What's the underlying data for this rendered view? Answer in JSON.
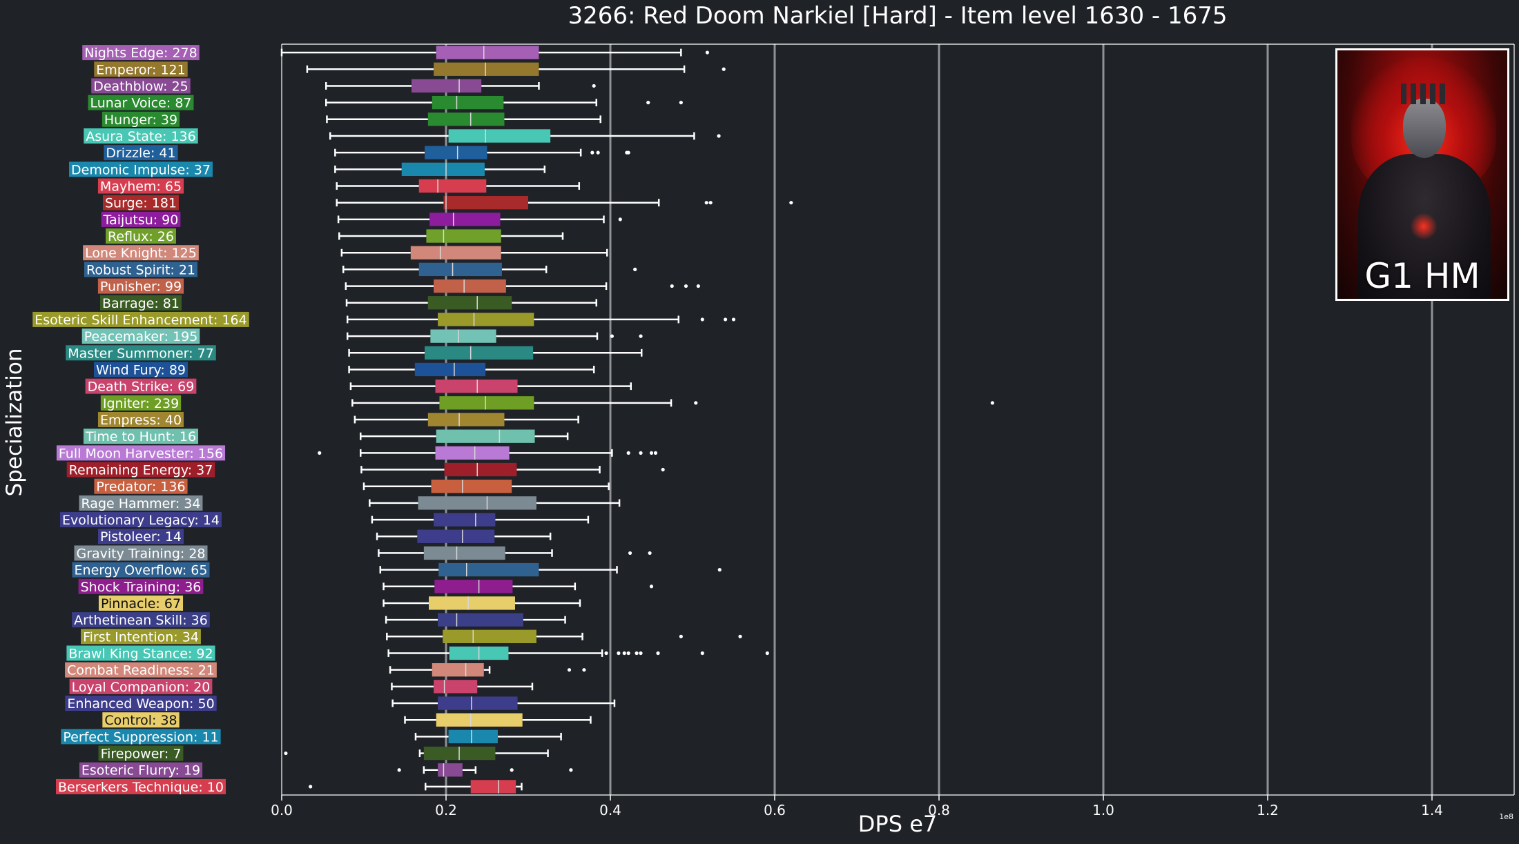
{
  "chart_data": {
    "type": "box",
    "title": "3266: Red Doom Narkiel [Hard] - Item level 1630 - 1675",
    "xlabel": "DPS e7",
    "ylabel": "Specialization",
    "x_offset_label": "1e8",
    "xlim": [
      0.0,
      1.5
    ],
    "x_ticks": [
      "0.0",
      "0.2",
      "0.4",
      "0.6",
      "0.8",
      "1.0",
      "1.2",
      "1.4"
    ],
    "grid": "vertical",
    "series": [
      {
        "label": "Nights Edge: 278",
        "color": "#a55fb5",
        "wmin": 0.0,
        "q1": 0.188,
        "median": 0.246,
        "q3": 0.313,
        "wmax": 0.486,
        "outliers": [
          0.518
        ]
      },
      {
        "label": "Emperor: 121",
        "color": "#94782e",
        "wmin": 0.031,
        "q1": 0.185,
        "median": 0.248,
        "q3": 0.313,
        "wmax": 0.49,
        "outliers": [
          0.538
        ]
      },
      {
        "label": "Deathblow: 25",
        "color": "#874a93",
        "wmin": 0.054,
        "q1": 0.158,
        "median": 0.216,
        "q3": 0.243,
        "wmax": 0.313,
        "outliers": [
          0.38
        ]
      },
      {
        "label": "Lunar Voice: 87",
        "color": "#2a8a2f",
        "wmin": 0.054,
        "q1": 0.183,
        "median": 0.213,
        "q3": 0.27,
        "wmax": 0.383,
        "outliers": [
          0.446,
          0.486
        ]
      },
      {
        "label": "Hunger: 39",
        "color": "#2a8a2f",
        "wmin": 0.055,
        "q1": 0.178,
        "median": 0.23,
        "q3": 0.271,
        "wmax": 0.388,
        "outliers": []
      },
      {
        "label": "Asura State: 136",
        "color": "#48c7b4",
        "wmin": 0.059,
        "q1": 0.203,
        "median": 0.248,
        "q3": 0.327,
        "wmax": 0.502,
        "outliers": [
          0.532
        ]
      },
      {
        "label": "Drizzle: 41",
        "color": "#1e5f9c",
        "wmin": 0.065,
        "q1": 0.174,
        "median": 0.214,
        "q3": 0.25,
        "wmax": 0.364,
        "outliers": [
          0.378,
          0.385,
          0.42,
          0.422
        ]
      },
      {
        "label": "Demonic Impulse: 37",
        "color": "#1a88ad",
        "wmin": 0.065,
        "q1": 0.146,
        "median": 0.2,
        "q3": 0.247,
        "wmax": 0.32,
        "outliers": []
      },
      {
        "label": "Mayhem: 65",
        "color": "#d63d4f",
        "wmin": 0.067,
        "q1": 0.167,
        "median": 0.19,
        "q3": 0.249,
        "wmax": 0.362,
        "outliers": []
      },
      {
        "label": "Surge: 181",
        "color": "#a82a2a",
        "wmin": 0.067,
        "q1": 0.197,
        "median": 0.2,
        "q3": 0.3,
        "wmax": 0.459,
        "outliers": [
          0.517,
          0.522,
          0.62
        ]
      },
      {
        "label": "Taijutsu: 90",
        "color": "#8e1d9e",
        "wmin": 0.069,
        "q1": 0.18,
        "median": 0.209,
        "q3": 0.266,
        "wmax": 0.392,
        "outliers": [
          0.412
        ]
      },
      {
        "label": "Reflux: 26",
        "color": "#70a02a",
        "wmin": 0.07,
        "q1": 0.176,
        "median": 0.197,
        "q3": 0.267,
        "wmax": 0.342,
        "outliers": []
      },
      {
        "label": "Lone Knight: 125",
        "color": "#d1887a",
        "wmin": 0.073,
        "q1": 0.157,
        "median": 0.193,
        "q3": 0.267,
        "wmax": 0.396,
        "outliers": []
      },
      {
        "label": "Robust Spirit: 21",
        "color": "#2f6290",
        "wmin": 0.075,
        "q1": 0.167,
        "median": 0.208,
        "q3": 0.268,
        "wmax": 0.322,
        "outliers": [
          0.43
        ]
      },
      {
        "label": "Punisher: 99",
        "color": "#c2614a",
        "wmin": 0.078,
        "q1": 0.185,
        "median": 0.222,
        "q3": 0.273,
        "wmax": 0.395,
        "outliers": [
          0.475,
          0.492,
          0.507
        ]
      },
      {
        "label": "Barrage: 81",
        "color": "#3a5c24",
        "wmin": 0.079,
        "q1": 0.178,
        "median": 0.238,
        "q3": 0.28,
        "wmax": 0.383,
        "outliers": []
      },
      {
        "label": "Esoteric Skill Enhancement: 164",
        "color": "#9a9a2a",
        "wmin": 0.08,
        "q1": 0.19,
        "median": 0.234,
        "q3": 0.307,
        "wmax": 0.483,
        "outliers": [
          0.512,
          0.54,
          0.55
        ]
      },
      {
        "label": "Peacemaker: 195",
        "color": "#72c2b6",
        "wmin": 0.08,
        "q1": 0.181,
        "median": 0.215,
        "q3": 0.261,
        "wmax": 0.384,
        "outliers": [
          0.402,
          0.437
        ]
      },
      {
        "label": "Master Summoner: 77",
        "color": "#2a8a83",
        "wmin": 0.082,
        "q1": 0.174,
        "median": 0.23,
        "q3": 0.306,
        "wmax": 0.438,
        "outliers": []
      },
      {
        "label": "Wind Fury: 89",
        "color": "#1e5298",
        "wmin": 0.082,
        "q1": 0.162,
        "median": 0.21,
        "q3": 0.248,
        "wmax": 0.38,
        "outliers": []
      },
      {
        "label": "Death Strike: 69",
        "color": "#c9436d",
        "wmin": 0.084,
        "q1": 0.187,
        "median": 0.238,
        "q3": 0.287,
        "wmax": 0.425,
        "outliers": []
      },
      {
        "label": "Igniter: 239",
        "color": "#6e9e24",
        "wmin": 0.086,
        "q1": 0.192,
        "median": 0.248,
        "q3": 0.307,
        "wmax": 0.474,
        "outliers": [
          0.504,
          0.865
        ]
      },
      {
        "label": "Empress: 40",
        "color": "#a08630",
        "wmin": 0.089,
        "q1": 0.178,
        "median": 0.216,
        "q3": 0.271,
        "wmax": 0.361,
        "outliers": []
      },
      {
        "label": "Time to Hunt: 16",
        "color": "#6fc1ae",
        "wmin": 0.096,
        "q1": 0.188,
        "median": 0.265,
        "q3": 0.308,
        "wmax": 0.348,
        "outliers": []
      },
      {
        "label": "Full Moon Harvester: 156",
        "color": "#b97ad6",
        "wmin": 0.096,
        "q1": 0.187,
        "median": 0.235,
        "q3": 0.277,
        "wmax": 0.402,
        "outliers": [
          0.046,
          0.422,
          0.437,
          0.45,
          0.455
        ]
      },
      {
        "label": "Remaining Energy: 37",
        "color": "#9e1f2a",
        "wmin": 0.097,
        "q1": 0.198,
        "median": 0.238,
        "q3": 0.286,
        "wmax": 0.387,
        "outliers": [
          0.464
        ]
      },
      {
        "label": "Predator: 136",
        "color": "#c8603f",
        "wmin": 0.1,
        "q1": 0.182,
        "median": 0.22,
        "q3": 0.28,
        "wmax": 0.398,
        "outliers": []
      },
      {
        "label": "Rage Hammer: 34",
        "color": "#7c8b93",
        "wmin": 0.107,
        "q1": 0.166,
        "median": 0.25,
        "q3": 0.31,
        "wmax": 0.411,
        "outliers": []
      },
      {
        "label": "Evolutionary Legacy: 14",
        "color": "#3e3d8c",
        "wmin": 0.11,
        "q1": 0.185,
        "median": 0.236,
        "q3": 0.26,
        "wmax": 0.373,
        "outliers": []
      },
      {
        "label": "Pistoleer: 14",
        "color": "#3e3d8c",
        "wmin": 0.116,
        "q1": 0.165,
        "median": 0.22,
        "q3": 0.259,
        "wmax": 0.327,
        "outliers": []
      },
      {
        "label": "Gravity Training: 28",
        "color": "#7c8b93",
        "wmin": 0.118,
        "q1": 0.173,
        "median": 0.213,
        "q3": 0.272,
        "wmax": 0.329,
        "outliers": [
          0.424,
          0.448
        ]
      },
      {
        "label": "Energy Overflow: 65",
        "color": "#2f6290",
        "wmin": 0.12,
        "q1": 0.191,
        "median": 0.225,
        "q3": 0.313,
        "wmax": 0.408,
        "outliers": [
          0.533
        ]
      },
      {
        "label": "Shock Training: 36",
        "color": "#8e1d8e",
        "wmin": 0.124,
        "q1": 0.186,
        "median": 0.24,
        "q3": 0.281,
        "wmax": 0.357,
        "outliers": [
          0.45
        ]
      },
      {
        "label": "Pinnacle: 67",
        "color": "#e8cd6b",
        "wmin": 0.124,
        "q1": 0.179,
        "median": 0.227,
        "q3": 0.284,
        "wmax": 0.363,
        "outliers": []
      },
      {
        "label": "Arthetinean Skill: 36",
        "color": "#3a3f88",
        "wmin": 0.127,
        "q1": 0.19,
        "median": 0.213,
        "q3": 0.294,
        "wmax": 0.345,
        "outliers": []
      },
      {
        "label": "First Intention: 34",
        "color": "#9a9a2a",
        "wmin": 0.128,
        "q1": 0.196,
        "median": 0.233,
        "q3": 0.31,
        "wmax": 0.366,
        "outliers": [
          0.486,
          0.558
        ]
      },
      {
        "label": "Brawl King Stance: 92",
        "color": "#48c7b4",
        "wmin": 0.13,
        "q1": 0.204,
        "median": 0.24,
        "q3": 0.276,
        "wmax": 0.39,
        "outliers": [
          0.395,
          0.41,
          0.417,
          0.422,
          0.432,
          0.437,
          0.458,
          0.512,
          0.591
        ]
      },
      {
        "label": "Combat Readiness: 21",
        "color": "#d1887a",
        "wmin": 0.132,
        "q1": 0.183,
        "median": 0.224,
        "q3": 0.246,
        "wmax": 0.253,
        "outliers": [
          0.35,
          0.368
        ]
      },
      {
        "label": "Loyal Companion: 20",
        "color": "#c9436d",
        "wmin": 0.134,
        "q1": 0.185,
        "median": 0.198,
        "q3": 0.238,
        "wmax": 0.305,
        "outliers": []
      },
      {
        "label": "Enhanced Weapon: 50",
        "color": "#3e3d8c",
        "wmin": 0.135,
        "q1": 0.19,
        "median": 0.231,
        "q3": 0.287,
        "wmax": 0.405,
        "outliers": []
      },
      {
        "label": "Control: 38",
        "color": "#e8cd6b",
        "wmin": 0.15,
        "q1": 0.188,
        "median": 0.23,
        "q3": 0.293,
        "wmax": 0.376,
        "outliers": []
      },
      {
        "label": "Perfect Suppression: 11",
        "color": "#1a88ad",
        "wmin": 0.163,
        "q1": 0.203,
        "median": 0.231,
        "q3": 0.263,
        "wmax": 0.34,
        "outliers": []
      },
      {
        "label": "Firepower: 7",
        "color": "#3a5c24",
        "wmin": 0.168,
        "q1": 0.173,
        "median": 0.216,
        "q3": 0.26,
        "wmax": 0.324,
        "outliers": [
          0.005
        ]
      },
      {
        "label": "Esoteric Flurry: 19",
        "color": "#874a93",
        "wmin": 0.173,
        "q1": 0.19,
        "median": 0.197,
        "q3": 0.22,
        "wmax": 0.236,
        "outliers": [
          0.143,
          0.28,
          0.352
        ]
      },
      {
        "label": "Berserkers Technique: 10",
        "color": "#d63d4f",
        "wmin": 0.175,
        "q1": 0.23,
        "median": 0.264,
        "q3": 0.285,
        "wmax": 0.292,
        "outliers": [
          0.035
        ]
      }
    ]
  },
  "image_badge": {
    "label": "G1 HM"
  }
}
